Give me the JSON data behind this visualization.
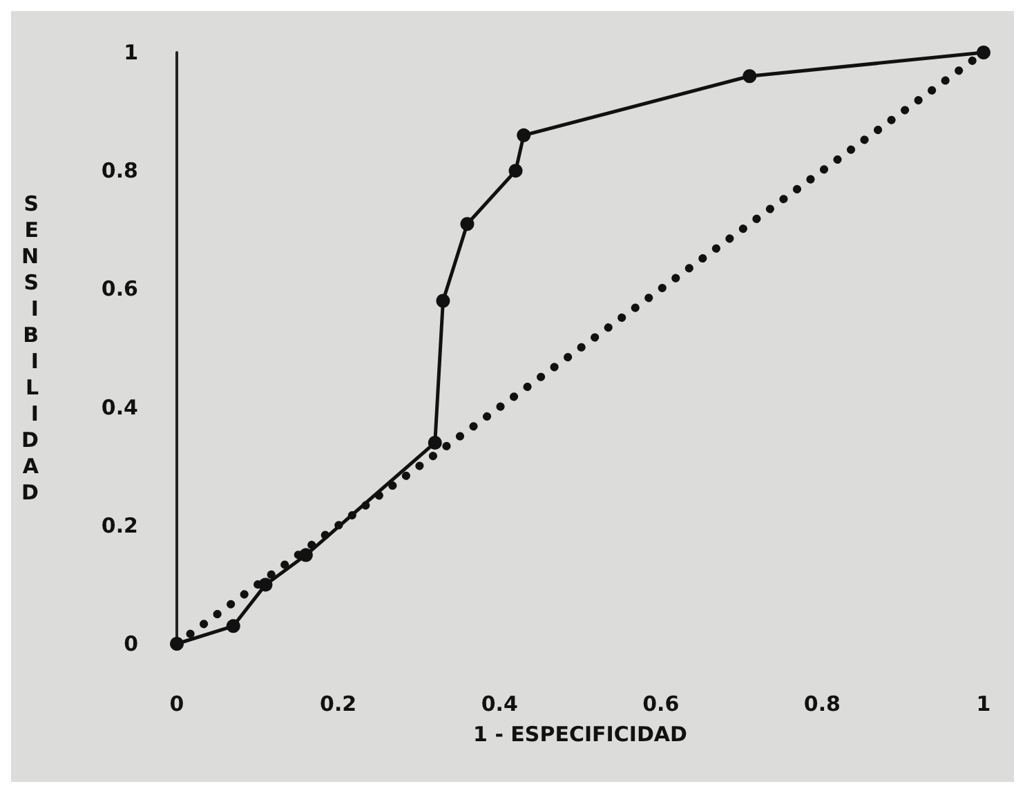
{
  "chart_data": {
    "type": "line",
    "xlabel": "1 - ESPECIFICIDAD",
    "ylabel": "SENSIBILIDAD",
    "xlim": [
      0,
      1
    ],
    "ylim": [
      0,
      1
    ],
    "xticks": [
      0,
      0.2,
      0.4,
      0.6,
      0.8,
      1
    ],
    "yticks": [
      0,
      0.2,
      0.4,
      0.6,
      0.8,
      1
    ],
    "grid": false,
    "series": [
      {
        "color": "#111111",
        "marker": "circle",
        "line_style": "solid",
        "x": [
          0,
          0.07,
          0.11,
          0.16,
          0.32,
          0.33,
          0.36,
          0.42,
          0.43,
          0.71,
          1
        ],
        "values": [
          0,
          0.03,
          0.1,
          0.15,
          0.34,
          0.58,
          0.71,
          0.8,
          0.86,
          0.96,
          1
        ]
      },
      {
        "color": "#111111",
        "marker": "none",
        "line_style": "dotted",
        "x": [
          0,
          1
        ],
        "values": [
          0,
          1
        ]
      }
    ]
  }
}
